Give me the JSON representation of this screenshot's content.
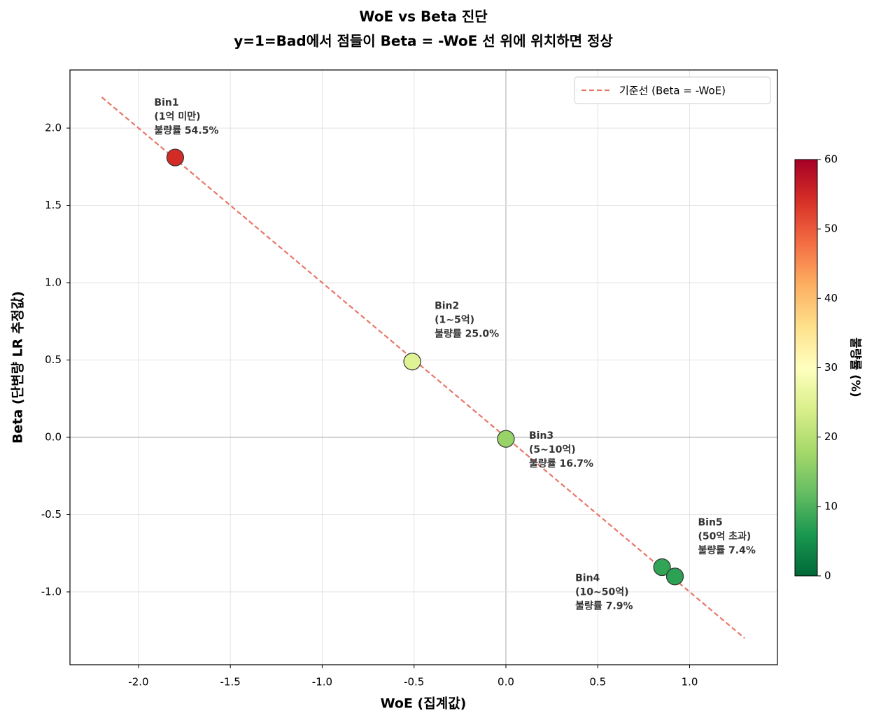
{
  "chart_data": {
    "type": "scatter",
    "title": "WoE vs Beta 진단",
    "subtitle": "y=1=Bad에서 점들이 Beta = -WoE 선 위에 위치하면 정상",
    "x_label": "WoE (집계값)",
    "y_label": "Beta (단변량 LR 추정값)",
    "x": [
      -1.8,
      -0.51,
      0.0,
      0.85,
      0.92
    ],
    "values": [
      1.81,
      0.49,
      -0.01,
      -0.84,
      -0.9
    ],
    "color_values": [
      54.5,
      25.0,
      16.7,
      7.9,
      7.4
    ],
    "annotations": [
      [
        "Bin1",
        "(1억 미만)",
        "불량률 54.5%"
      ],
      [
        "Bin2",
        "(1~5억)",
        "불량률 25.0%"
      ],
      [
        "Bin3",
        "(5~10억)",
        "불량률 16.7%"
      ],
      [
        "Bin4",
        "(10~50억)",
        "불량률 7.9%"
      ],
      [
        "Bin5",
        "(50억 초과)",
        "불량률 7.4%"
      ]
    ],
    "reference_line": {
      "name": "기준선 (Beta = -WoE)",
      "x": [
        -2.2,
        1.3
      ],
      "values": [
        2.2,
        -1.3
      ],
      "color": "#e8776a"
    },
    "xlim": [
      -2.373,
      1.478
    ],
    "ylim": [
      -1.471,
      2.376
    ],
    "xticks": [
      {
        "value": -2,
        "label": "-2.0"
      },
      -1.5,
      {
        "value": -1,
        "label": "-1.0"
      },
      -0.5,
      {
        "value": 0,
        "label": "0.0"
      },
      0.5,
      {
        "value": 1,
        "label": "1.0"
      }
    ],
    "yticks": [
      {
        "value": -1,
        "label": "-1.0"
      },
      -0.5,
      {
        "value": 0,
        "label": "0.0"
      },
      0.5,
      {
        "value": 1,
        "label": "1.0"
      },
      1.5,
      {
        "value": 2,
        "label": "2.0"
      }
    ],
    "grid": true,
    "legend": "upper right",
    "colorbar": {
      "label": "불량률 (%)",
      "lim": [
        0,
        60
      ],
      "ticks": [
        0,
        10,
        20,
        30,
        40,
        50,
        60
      ],
      "colormap": [
        "#006837",
        "#1a9850",
        "#66bd63",
        "#a6d96a",
        "#d9ef8b",
        "#ffffbf",
        "#fee08b",
        "#fdae61",
        "#f46d43",
        "#d73027",
        "#a50026"
      ]
    }
  }
}
